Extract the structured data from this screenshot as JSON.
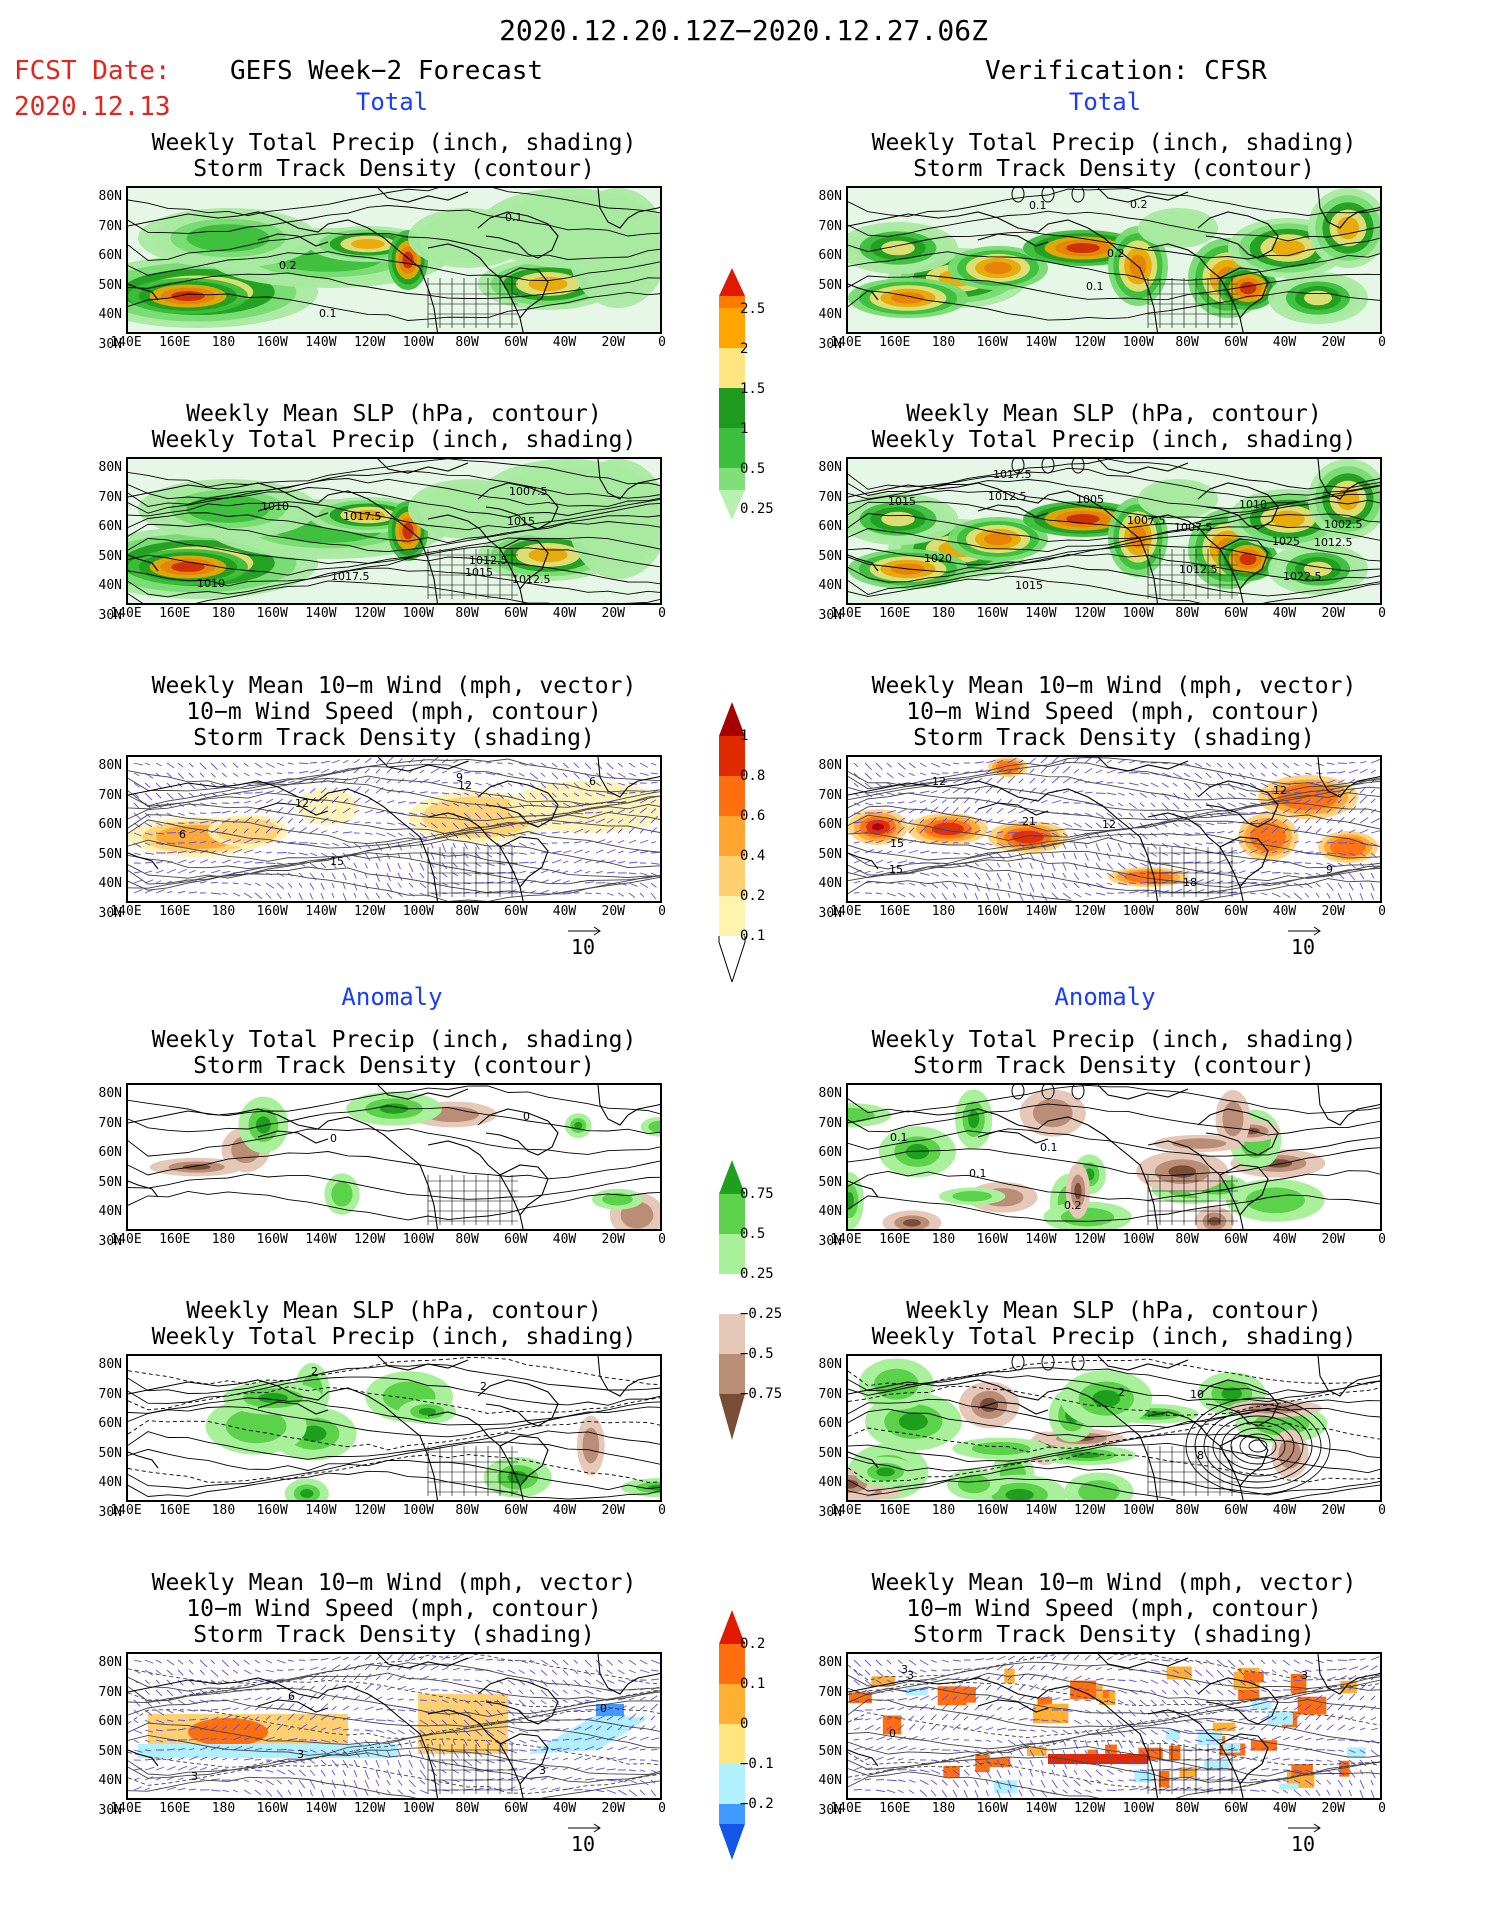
{
  "header": {
    "period": "2020.12.20.12Z−2020.12.27.06Z",
    "fcst_label": "FCST Date:",
    "fcst_date": "2020.12.13",
    "left_title": "GEFS Week−2 Forecast",
    "right_title": "Verification: CFSR"
  },
  "sections": {
    "total": "Total",
    "anomaly": "Anomaly"
  },
  "panel_titles": {
    "precip": [
      "Weekly Total Precip (inch, shading)",
      "Storm Track Density (contour)"
    ],
    "slp": [
      "Weekly Mean SLP (hPa, contour)",
      "Weekly Total Precip (inch, shading)"
    ],
    "wind": [
      "Weekly Mean 10−m Wind (mph, vector)",
      "10−m Wind Speed (mph, contour)",
      "Storm Track Density (shading)"
    ]
  },
  "axes": {
    "lat_labels": [
      "80N",
      "70N",
      "60N",
      "50N",
      "40N",
      "30N"
    ],
    "lon_labels": [
      "140E",
      "160E",
      "180",
      "160W",
      "140W",
      "120W",
      "100W",
      "80W",
      "60W",
      "40W",
      "20W",
      "0"
    ]
  },
  "vector_ref": "10",
  "colorbars": {
    "precip_total": [
      "2.5",
      "2",
      "1.5",
      "1",
      "0.5",
      "0.25"
    ],
    "density_total": [
      "1",
      "0.8",
      "0.6",
      "0.4",
      "0.2",
      "0.1"
    ],
    "precip_anom": [
      "0.75",
      "0.5",
      "0.25",
      "−0.25",
      "−0.5",
      "−0.75"
    ],
    "density_anom": [
      "0.2",
      "0.1",
      "0",
      "−0.1",
      "−0.2"
    ]
  },
  "contour_labels": {
    "fc_total_precip": [
      "0.2",
      "0.1",
      "0.1"
    ],
    "vf_total_precip": [
      "0.1",
      "0.1",
      "0.2",
      "0.2"
    ],
    "fc_total_slp": [
      "1015",
      "1012.5",
      "1010",
      "1012.5",
      "1010",
      "1017.5",
      "1015",
      "1017.5",
      "1007.5"
    ],
    "vf_total_slp": [
      "1012.5",
      "1012.5",
      "1010",
      "1005",
      "1012.5",
      "1015",
      "1007.5",
      "1022.5",
      "1002.5",
      "1007.5",
      "1015",
      "1017.5",
      "1020",
      "1025"
    ],
    "fc_total_wind": [
      "12",
      "6",
      "15",
      "12",
      "9",
      "6"
    ],
    "vf_total_wind": [
      "12",
      "15",
      "12",
      "21",
      "18",
      "12",
      "15",
      "9"
    ],
    "fc_anom_precip": [
      "0",
      "0"
    ],
    "vf_anom_precip": [
      "0.1",
      "0.1",
      "0.2",
      "0.1"
    ],
    "fc_anom_slp": [
      "2",
      "2"
    ],
    "vf_anom_slp": [
      "2",
      "10",
      "8"
    ],
    "fc_anom_wind": [
      "3",
      "3",
      "6",
      "3",
      "0"
    ],
    "vf_anom_wind": [
      "3",
      "3",
      "0",
      "3"
    ]
  },
  "colors": {
    "red_text": "#e8221c",
    "blue_text": "#1a3cff",
    "precip": [
      "#b8f0b0",
      "#7fe07a",
      "#3cbf3c",
      "#1e9a1e",
      "#ffe680",
      "#ffa500",
      "#ff7a00",
      "#e01a00"
    ],
    "density": [
      "#fff3b0",
      "#ffd070",
      "#ffa530",
      "#ff6f10",
      "#e02a00",
      "#a80000"
    ],
    "anom_brown": [
      "#e6c8b8",
      "#b98d76",
      "#7a4d38"
    ],
    "anom_green": [
      "#a8f09a",
      "#5cd24a",
      "#1ea01e"
    ],
    "anom_blue": [
      "#b0f0ff",
      "#3f9bff",
      "#1456e8"
    ]
  }
}
